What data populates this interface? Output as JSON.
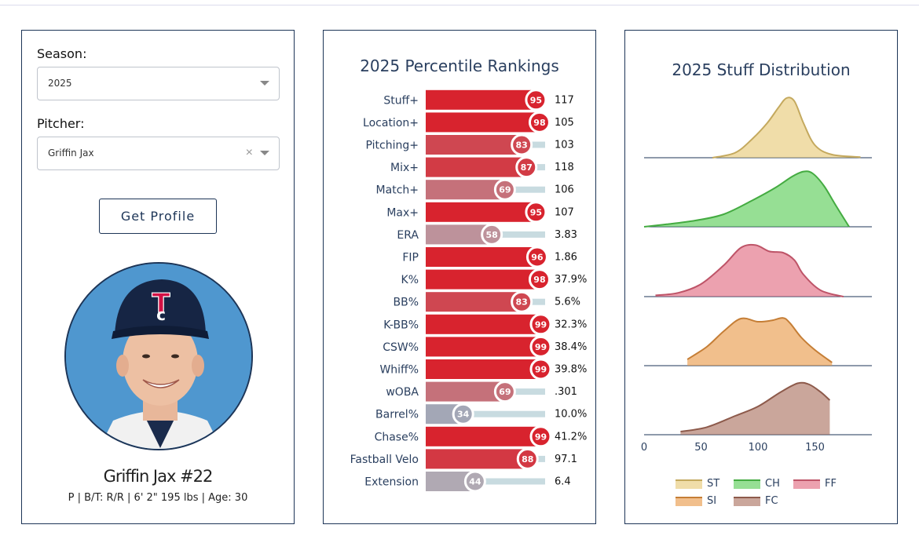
{
  "filters": {
    "season_label": "Season:",
    "season_value": "2025",
    "pitcher_label": "Pitcher:",
    "pitcher_value": "Griffin Jax",
    "clear_symbol": "×"
  },
  "button": {
    "label": "Get Profile"
  },
  "player": {
    "name": "Griffin Jax #22",
    "info": "P | B/T: R/R | 6' 2\" 195 lbs | Age: 30"
  },
  "colors": {
    "panel_border": "#1d3557",
    "ST": "#e6c76f",
    "CH": "#50c94c",
    "FF": "#e0637a",
    "SI": "#e8943f",
    "FC": "#a66a58"
  },
  "chart_data": [
    {
      "type": "bar",
      "title": "2025 Percentile Rankings",
      "range": [
        0,
        100
      ],
      "categories": [
        "Stuff+",
        "Location+",
        "Pitching+",
        "Mix+",
        "Match+",
        "Max+",
        "ERA",
        "FIP",
        "K%",
        "BB%",
        "K-BB%",
        "CSW%",
        "Whiff%",
        "wOBA",
        "Barrel%",
        "Chase%",
        "Fastball Velo",
        "Extension"
      ],
      "percentiles": [
        95,
        98,
        83,
        87,
        69,
        95,
        58,
        96,
        98,
        83,
        99,
        99,
        99,
        69,
        34,
        99,
        88,
        44
      ],
      "stat_values": [
        "117",
        "105",
        "103",
        "118",
        "106",
        "107",
        "3.83",
        "1.86",
        "37.9%",
        "5.6%",
        "32.3%",
        "38.4%",
        "39.8%",
        ".301",
        "10.0%",
        "41.2%",
        "97.1",
        "6.4"
      ]
    },
    {
      "type": "area",
      "title": "2025 Stuff Distribution",
      "x_ticks": [
        0,
        50,
        100,
        150
      ],
      "xlim": [
        0,
        200
      ],
      "series": [
        {
          "name": "ST",
          "x": [
            60,
            80,
            95,
            108,
            118,
            125,
            132,
            140,
            150,
            165,
            190
          ],
          "y": [
            0.0,
            0.08,
            0.3,
            0.55,
            0.8,
            0.95,
            0.9,
            0.55,
            0.2,
            0.05,
            0.01
          ]
        },
        {
          "name": "CH",
          "x": [
            0,
            20,
            45,
            70,
            95,
            115,
            130,
            140,
            148,
            158,
            168,
            180
          ],
          "y": [
            0.0,
            0.04,
            0.1,
            0.2,
            0.42,
            0.62,
            0.8,
            0.88,
            0.85,
            0.65,
            0.35,
            0.0
          ]
        },
        {
          "name": "FF",
          "x": [
            10,
            30,
            50,
            70,
            85,
            98,
            110,
            122,
            132,
            140,
            155,
            175
          ],
          "y": [
            0.02,
            0.06,
            0.2,
            0.5,
            0.78,
            0.82,
            0.72,
            0.7,
            0.58,
            0.35,
            0.1,
            0.0
          ]
        },
        {
          "name": "SI",
          "x": [
            38,
            55,
            70,
            85,
            100,
            112,
            122,
            128,
            138,
            150,
            165
          ],
          "y": [
            0.1,
            0.3,
            0.55,
            0.75,
            0.7,
            0.72,
            0.76,
            0.68,
            0.45,
            0.25,
            0.05
          ]
        },
        {
          "name": "FC",
          "x": [
            32,
            55,
            80,
            100,
            120,
            135,
            145,
            155,
            163
          ],
          "y": [
            0.05,
            0.12,
            0.3,
            0.45,
            0.68,
            0.82,
            0.8,
            0.68,
            0.55
          ]
        }
      ]
    }
  ]
}
